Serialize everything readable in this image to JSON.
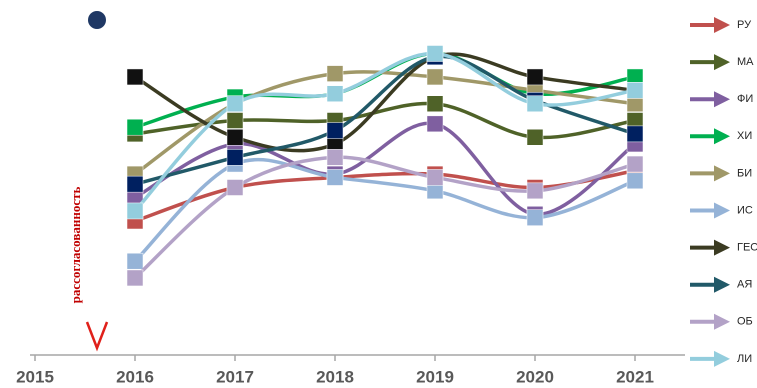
{
  "chart_data": {
    "type": "line",
    "ylabel": "рассогласованность",
    "xlim": [
      2015,
      2021.5
    ],
    "xticks": [
      2015,
      2016,
      2017,
      2018,
      2019,
      2020,
      2021
    ],
    "ylim": [
      0,
      100
    ],
    "x": [
      2016,
      2017,
      2018,
      2019,
      2020,
      2021
    ],
    "smooth": true,
    "legend": "right",
    "series": [
      {
        "name": "РУ",
        "color": "#c0504d",
        "values": [
          40,
          50,
          53,
          54,
          50,
          55
        ]
      },
      {
        "name": "МА",
        "color": "#4f6228",
        "values": [
          66,
          70,
          70,
          75,
          65,
          70
        ]
      },
      {
        "name": "ФИ",
        "color": "#7f5fa0",
        "values": [
          47,
          63,
          54,
          69,
          42,
          63
        ]
      },
      {
        "name": "ХИ",
        "color": "#00b050",
        "values": [
          68,
          77,
          78,
          90,
          78,
          83
        ]
      },
      {
        "name": "БИ",
        "color": "#a09868",
        "values": [
          54,
          75,
          84,
          83,
          79,
          75
        ]
      },
      {
        "name": "ИС",
        "color": "#95b3d7",
        "values": [
          28,
          57,
          53,
          49,
          41,
          52
        ]
      },
      {
        "name": "ГЕО",
        "color": "#3b3b22",
        "marker_color": "#111111",
        "values": [
          83,
          65,
          63,
          89,
          83,
          79
        ]
      },
      {
        "name": "АЯ",
        "color": "#215968",
        "marker_color": "#002060",
        "values": [
          51,
          59,
          67,
          89,
          76,
          66
        ]
      },
      {
        "name": "ОБ",
        "color": "#b3a2c7",
        "values": [
          23,
          50,
          59,
          53,
          49,
          57
        ]
      },
      {
        "name": "ЛИ",
        "color": "#93cddd",
        "values": [
          43,
          75,
          78,
          90,
          75,
          79
        ]
      }
    ]
  }
}
